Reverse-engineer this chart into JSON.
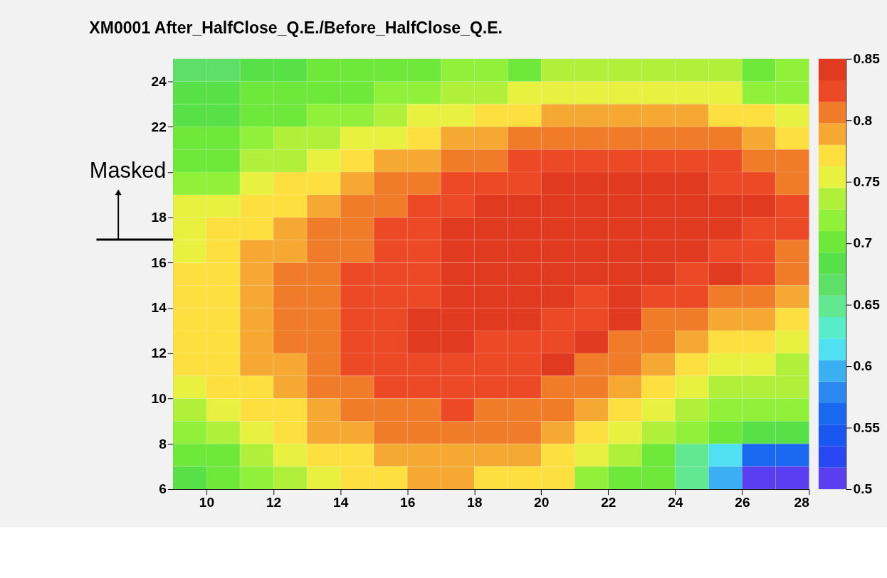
{
  "chart_data": {
    "type": "heatmap",
    "title": "XM0001 After_HalfClose_Q.E./Before_HalfClose_Q.E.",
    "xlim": [
      9,
      28
    ],
    "xticks": [
      10,
      12,
      14,
      16,
      18,
      20,
      22,
      24,
      26,
      28
    ],
    "ylim": [
      6,
      25
    ],
    "yticks": [
      6,
      8,
      10,
      12,
      14,
      16,
      18,
      {
        "value": 20,
        "label": null
      },
      22,
      24
    ],
    "clim": [
      0.5,
      0.85
    ],
    "cticks": [
      0.5,
      0.55,
      0.6,
      0.65,
      0.7,
      0.75,
      0.8,
      0.85
    ],
    "annotations": [
      "Masked"
    ],
    "cells": [
      [
        0.665,
        0.665,
        0.69,
        0.69,
        0.7,
        0.7,
        0.7,
        0.7,
        0.72,
        0.72,
        0.7,
        0.73,
        0.73,
        0.73,
        0.73,
        0.73,
        0.73,
        0.7,
        0.72
      ],
      [
        0.69,
        0.69,
        0.7,
        0.7,
        0.7,
        0.7,
        0.72,
        0.72,
        0.73,
        0.73,
        0.75,
        0.75,
        0.75,
        0.75,
        0.75,
        0.75,
        0.75,
        0.72,
        0.72
      ],
      [
        0.69,
        0.69,
        0.7,
        0.7,
        0.72,
        0.72,
        0.73,
        0.75,
        0.75,
        0.77,
        0.77,
        0.79,
        0.79,
        0.79,
        0.79,
        0.79,
        0.77,
        0.77,
        0.75
      ],
      [
        0.7,
        0.7,
        0.72,
        0.73,
        0.73,
        0.75,
        0.75,
        0.77,
        0.79,
        0.79,
        0.81,
        0.81,
        0.81,
        0.81,
        0.81,
        0.81,
        0.81,
        0.79,
        0.77
      ],
      [
        0.7,
        0.7,
        0.73,
        0.73,
        0.75,
        0.77,
        0.79,
        0.79,
        0.81,
        0.81,
        0.82,
        0.82,
        0.82,
        0.82,
        0.82,
        0.82,
        0.82,
        0.81,
        0.81
      ],
      [
        0.72,
        0.72,
        0.75,
        0.77,
        0.77,
        0.79,
        0.81,
        0.81,
        0.82,
        0.82,
        0.82,
        0.84,
        0.84,
        0.84,
        0.84,
        0.84,
        0.82,
        0.82,
        0.81
      ],
      [
        0.75,
        0.75,
        0.77,
        0.77,
        0.79,
        0.81,
        0.81,
        0.82,
        0.82,
        0.84,
        0.84,
        0.84,
        0.84,
        0.84,
        0.84,
        0.84,
        0.84,
        0.84,
        0.82
      ],
      [
        0.75,
        0.77,
        0.77,
        0.79,
        0.81,
        0.81,
        0.82,
        0.82,
        0.84,
        0.84,
        0.84,
        0.84,
        0.84,
        0.84,
        0.84,
        0.84,
        0.84,
        0.82,
        0.82
      ],
      [
        0.75,
        0.77,
        0.79,
        0.79,
        0.81,
        0.81,
        0.82,
        0.82,
        0.84,
        0.84,
        0.84,
        0.84,
        0.84,
        0.84,
        0.84,
        0.84,
        0.82,
        0.82,
        0.81
      ],
      [
        0.77,
        0.77,
        0.79,
        0.81,
        0.81,
        0.82,
        0.82,
        0.82,
        0.84,
        0.84,
        0.84,
        0.84,
        0.84,
        0.84,
        0.84,
        0.82,
        0.84,
        0.82,
        0.81
      ],
      [
        0.77,
        0.77,
        0.79,
        0.81,
        0.81,
        0.82,
        0.82,
        0.82,
        0.84,
        0.84,
        0.84,
        0.84,
        0.82,
        0.84,
        0.82,
        0.82,
        0.81,
        0.81,
        0.79
      ],
      [
        0.77,
        0.77,
        0.79,
        0.81,
        0.81,
        0.82,
        0.82,
        0.84,
        0.84,
        0.84,
        0.84,
        0.82,
        0.82,
        0.84,
        0.81,
        0.81,
        0.79,
        0.79,
        0.77
      ],
      [
        0.77,
        0.77,
        0.79,
        0.81,
        0.81,
        0.82,
        0.82,
        0.84,
        0.84,
        0.82,
        0.82,
        0.82,
        0.84,
        0.81,
        0.81,
        0.79,
        0.77,
        0.77,
        0.75
      ],
      [
        0.77,
        0.77,
        0.79,
        0.79,
        0.81,
        0.82,
        0.82,
        0.82,
        0.82,
        0.82,
        0.82,
        0.84,
        0.81,
        0.81,
        0.79,
        0.77,
        0.75,
        0.75,
        0.73
      ],
      [
        0.75,
        0.77,
        0.77,
        0.79,
        0.81,
        0.81,
        0.82,
        0.82,
        0.82,
        0.82,
        0.82,
        0.81,
        0.81,
        0.79,
        0.77,
        0.75,
        0.73,
        0.73,
        0.73
      ],
      [
        0.73,
        0.75,
        0.77,
        0.77,
        0.79,
        0.81,
        0.81,
        0.81,
        0.82,
        0.81,
        0.81,
        0.81,
        0.79,
        0.77,
        0.75,
        0.73,
        0.72,
        0.72,
        0.72
      ],
      [
        0.72,
        0.73,
        0.75,
        0.77,
        0.79,
        0.79,
        0.81,
        0.81,
        0.81,
        0.81,
        0.81,
        0.79,
        0.77,
        0.75,
        0.73,
        0.72,
        0.7,
        0.68,
        0.68
      ],
      [
        0.7,
        0.7,
        0.73,
        0.75,
        0.77,
        0.77,
        0.79,
        0.79,
        0.79,
        0.79,
        0.79,
        0.77,
        0.75,
        0.73,
        0.7,
        0.65,
        0.61,
        0.56,
        0.56
      ],
      [
        0.68,
        0.7,
        0.72,
        0.73,
        0.75,
        0.77,
        0.77,
        0.79,
        0.79,
        0.77,
        0.77,
        0.77,
        0.72,
        0.7,
        0.7,
        0.65,
        0.59,
        0.51,
        0.51
      ]
    ]
  }
}
